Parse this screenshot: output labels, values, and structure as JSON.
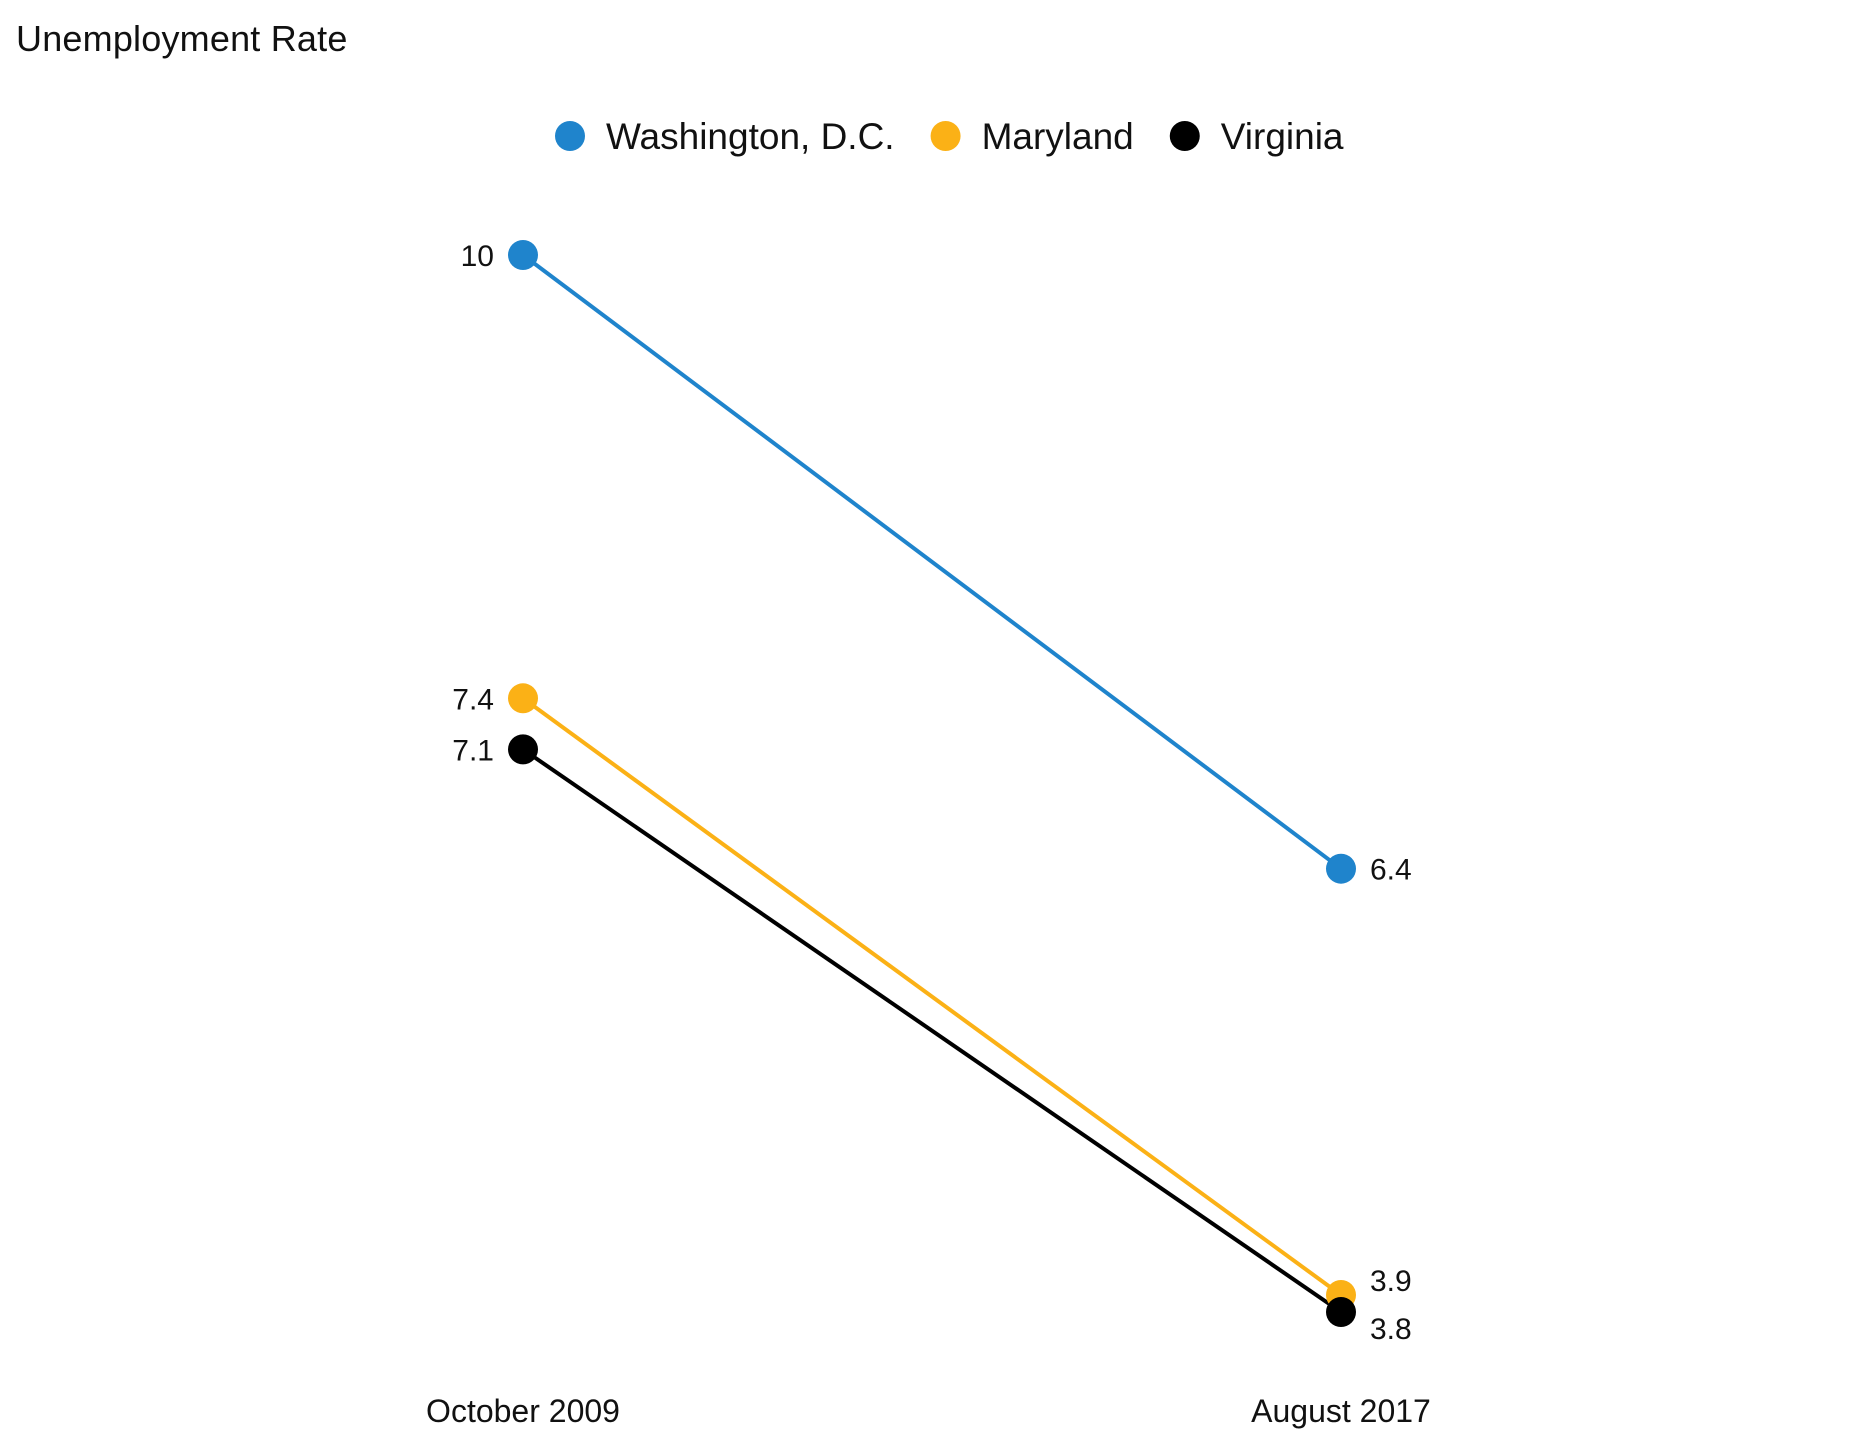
{
  "chart_data": {
    "type": "line",
    "title": "Unemployment Rate",
    "xlabel": "",
    "ylabel": "",
    "categories": [
      "October 2009",
      "August 2017"
    ],
    "series": [
      {
        "name": "Washington, D.C.",
        "color": "#1f84cc",
        "values": [
          10,
          6.4
        ],
        "value_labels": [
          "10",
          "6.4"
        ]
      },
      {
        "name": "Maryland",
        "color": "#fbb116",
        "values": [
          7.4,
          3.9
        ],
        "value_labels": [
          "7.4",
          "3.9"
        ]
      },
      {
        "name": "Virginia",
        "color": "#000000",
        "values": [
          7.1,
          3.8
        ],
        "value_labels": [
          "7.1",
          "3.8"
        ]
      }
    ],
    "ylim": [
      3.2,
      10.5
    ],
    "grid": false,
    "legend_position": "top-center"
  }
}
